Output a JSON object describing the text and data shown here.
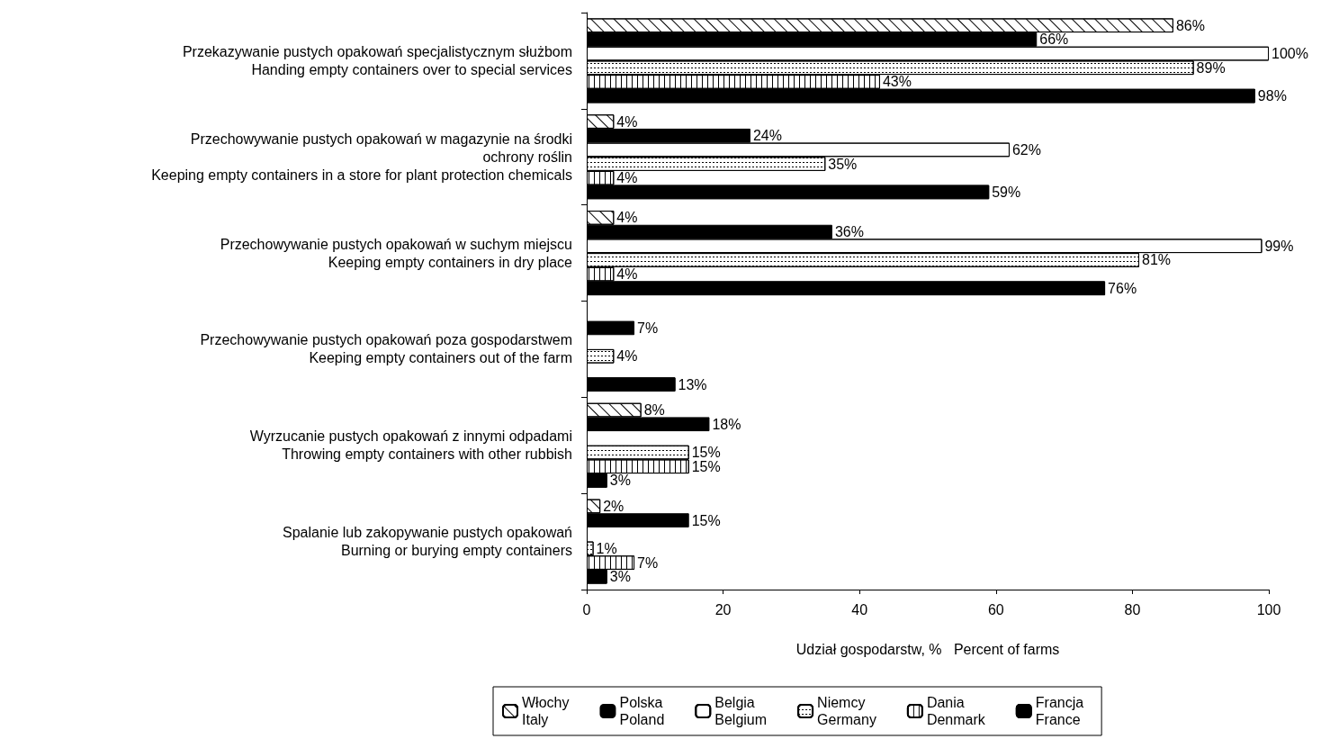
{
  "chart_data": {
    "type": "bar",
    "orientation": "horizontal",
    "xlabel": "Udział gospodarstw, %   Percent of farms",
    "categories": [
      "Przekazywanie pustych opakowań specjalistycznym służbom\nHanding empty containers over to special services",
      "Przechowywanie pustych opakowań w magazynie na środki\nochrony roślin\nKeeping empty containers in a store for plant protection chemicals",
      "Przechowywanie pustych opakowań w suchym miejscu\nKeeping empty containers in dry place",
      "Przechowywanie pustych opakowań poza gospodarstwem\nKeeping empty containers out of the farm",
      "Wyrzucanie pustych opakowań z innymi odpadami\nThrowing empty containers with other rubbish",
      "Spalanie lub zakopywanie pustych opakowań\nBurning or burying empty containers"
    ],
    "series": [
      {
        "name": "Włochy\nItaly",
        "color": "#ffffff",
        "values": [
          86,
          4,
          4,
          null,
          8,
          2
        ],
        "value_labels": [
          "86%",
          "4%",
          "4%",
          null,
          "8%",
          "2%"
        ]
      },
      {
        "name": "Polska\nPoland",
        "color": "#000000",
        "values": [
          66,
          24,
          36,
          7,
          18,
          15
        ],
        "value_labels": [
          "66%",
          "24%",
          "36%",
          "7%",
          "18%",
          "15%"
        ]
      },
      {
        "name": "Belgia\nBelgium",
        "color": "#ffffff",
        "values": [
          100,
          62,
          99,
          null,
          null,
          null
        ],
        "value_labels": [
          "100%",
          "62%",
          "99%",
          null,
          null,
          null
        ]
      },
      {
        "name": "Niemcy\nGermany",
        "color": "#ffffff",
        "values": [
          89,
          35,
          81,
          4,
          15,
          1
        ],
        "value_labels": [
          "89%",
          "35%",
          "81%",
          "4%",
          "15%",
          "1%"
        ]
      },
      {
        "name": "Dania\nDenmark",
        "color": "#ffffff",
        "values": [
          43,
          4,
          4,
          null,
          15,
          7
        ],
        "value_labels": [
          "43%",
          "4%",
          "4%",
          null,
          "15%",
          "7%"
        ]
      },
      {
        "name": "Francja\nFrance",
        "color": "#000000",
        "values": [
          98,
          59,
          76,
          13,
          3,
          3
        ],
        "value_labels": [
          "98%",
          "59%",
          "76%",
          "13%",
          "3%",
          "3%"
        ]
      }
    ],
    "xlim": [
      0,
      100
    ],
    "xticks": [
      0,
      20,
      40,
      60,
      80,
      100
    ],
    "grid": false,
    "legend": "bottom"
  }
}
